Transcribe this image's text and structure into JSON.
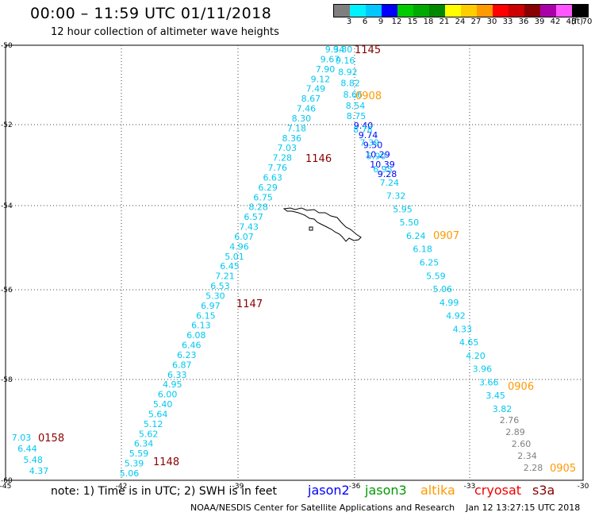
{
  "header": {
    "title": "00:00 – 11:59 UTC 01/11/2018",
    "subtitle": "12 hour collection of altimeter wave heights"
  },
  "legend": {
    "unit_label": "(ft)",
    "items": [
      {
        "label": "3",
        "color": "#7f7f7f"
      },
      {
        "label": "6",
        "color": "#00f2ff"
      },
      {
        "label": "9",
        "color": "#00c8ff"
      },
      {
        "label": "12",
        "color": "#0000ff"
      },
      {
        "label": "15",
        "color": "#00cc00"
      },
      {
        "label": "18",
        "color": "#00aa00"
      },
      {
        "label": "21",
        "color": "#008800"
      },
      {
        "label": "24",
        "color": "#ffff00"
      },
      {
        "label": "27",
        "color": "#ffcc00"
      },
      {
        "label": "30",
        "color": "#ff9900"
      },
      {
        "label": "33",
        "color": "#ff0000"
      },
      {
        "label": "36",
        "color": "#cc0000"
      },
      {
        "label": "39",
        "color": "#880000"
      },
      {
        "label": "42",
        "color": "#aa00aa"
      },
      {
        "label": "45",
        "color": "#ff55ff"
      },
      {
        "label": "70",
        "color": "#000000"
      }
    ]
  },
  "map": {
    "lon_ticks": [
      "-45",
      "-42",
      "-39",
      "-36",
      "-33",
      "-30"
    ],
    "lat_ticks": [
      "-50",
      "-52",
      "-54",
      "-56",
      "-58",
      "-60"
    ],
    "colors": {
      "gray": "#808080",
      "cyan": "#00c8f0",
      "blue": "#0000ff",
      "orange": "#ff9900",
      "darkred": "#880000"
    },
    "track_a": [
      "9.34",
      "9.67",
      "7.90",
      "9.12",
      "7.49",
      "8.67",
      "7.46",
      "8.30",
      "7.18",
      "8.36",
      "7.03",
      "7.28",
      "7.76",
      "6.63",
      "6.29",
      "6.75",
      "8.28",
      "6.57",
      "7.43",
      "6.07",
      "4.96",
      "5.01",
      "6.45",
      "7.21",
      "6.53",
      "5.30",
      "6.97",
      "6.15",
      "6.13",
      "6.08",
      "6.46",
      "6.23",
      "6.87",
      "6.33",
      "4.95",
      "6.00",
      "5.40",
      "5.64",
      "5.12",
      "5.62",
      "6.34",
      "5.59",
      "5.39",
      "5.06"
    ],
    "track_b_top": [
      "9.80",
      "9.16",
      "8.92",
      "8.82",
      "8.66",
      "8.54"
    ],
    "track_b_blue": [
      "9.40",
      "9.74",
      "9.50",
      "10.29",
      "10.39",
      "9.28"
    ],
    "track_b_cyan": [
      "8.75",
      "8.78",
      "7.39",
      "5.90",
      "6.95",
      "7.24",
      "7.32",
      "5.95",
      "5.50",
      "6.24",
      "6.18",
      "6.25",
      "5.59",
      "5.06",
      "4.99",
      "4.92",
      "4.33",
      "4.65",
      "4.20",
      "3.96",
      "3.66",
      "3.45",
      "3.82"
    ],
    "track_b_gray": [
      "2.76",
      "2.89",
      "2.60",
      "2.34",
      "2.28"
    ],
    "track_c": [
      "7.03",
      "6.44",
      "5.48",
      "4.37"
    ],
    "time_labels": [
      {
        "text": "1145",
        "color": "darkred"
      },
      {
        "text": "0908",
        "color": "orange"
      },
      {
        "text": "1146",
        "color": "darkred"
      },
      {
        "text": "0907",
        "color": "orange"
      },
      {
        "text": "1147",
        "color": "darkred"
      },
      {
        "text": "0906",
        "color": "orange"
      },
      {
        "text": "0158",
        "color": "darkred"
      },
      {
        "text": "1148",
        "color": "darkred"
      },
      {
        "text": "0905",
        "color": "orange"
      }
    ]
  },
  "note": "note:  1) Time is in UTC;  2) SWH is in feet",
  "missions": [
    {
      "name": "jason2",
      "color": "#0000ff"
    },
    {
      "name": "jason3",
      "color": "#009900"
    },
    {
      "name": "altika",
      "color": "#ff9900"
    },
    {
      "name": "cryosat",
      "color": "#ee0000"
    },
    {
      "name": "s3a",
      "color": "#880000"
    }
  ],
  "footer": {
    "center": "NOAA/NESDIS Center for Satellite Applications and Research",
    "timestamp": "Jan 12 13:27:15 UTC 2018"
  }
}
